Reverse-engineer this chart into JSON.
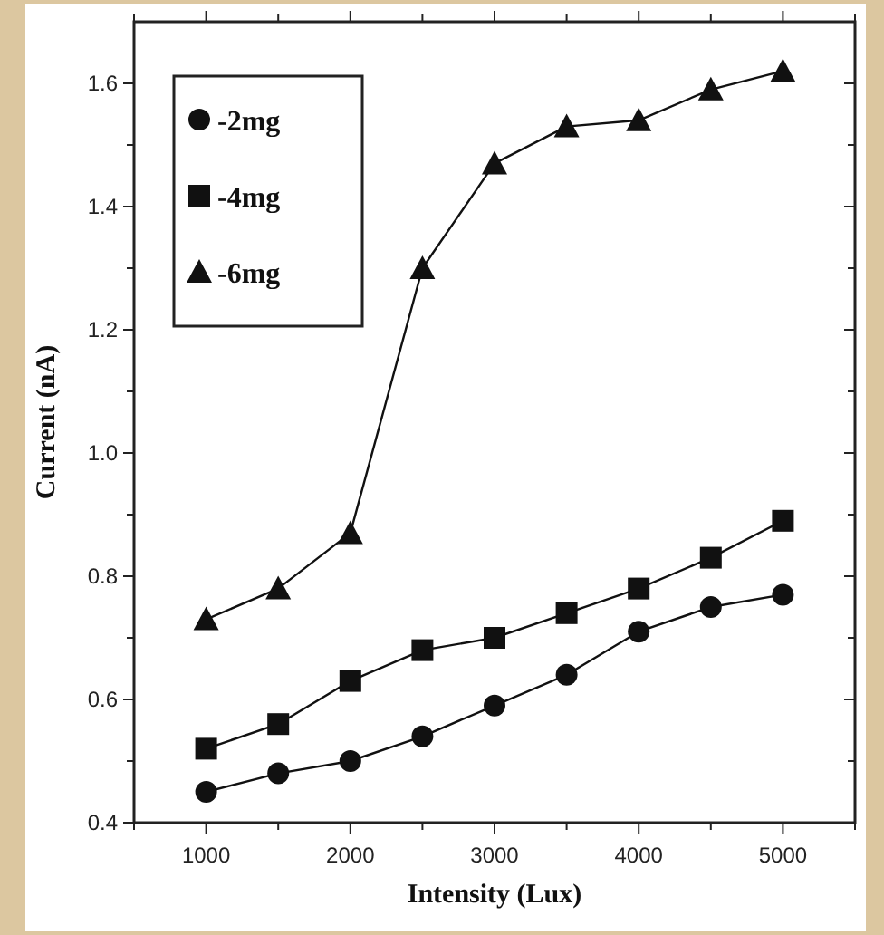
{
  "chart_data": {
    "type": "line",
    "xlabel": "Intensity (Lux)",
    "ylabel": "Current (nA)",
    "x": [
      1000,
      1500,
      2000,
      2500,
      3000,
      3500,
      4000,
      4500,
      5000
    ],
    "xlim": [
      500,
      5500
    ],
    "xticks": [
      {
        "value": 500,
        "label": null
      },
      1000,
      {
        "value": 1500,
        "label": null
      },
      2000,
      {
        "value": 2500,
        "label": null
      },
      3000,
      {
        "value": 3500,
        "label": null
      },
      4000,
      {
        "value": 4500,
        "label": null
      },
      5000,
      {
        "value": 5500,
        "label": null
      }
    ],
    "ylim": [
      0.4,
      1.7
    ],
    "yticks": [
      0.4,
      {
        "value": 0.5,
        "label": null
      },
      0.6,
      {
        "value": 0.7,
        "label": null
      },
      0.8,
      {
        "value": 0.9,
        "label": null
      },
      {
        "value": 1.0,
        "label": "1.0"
      },
      {
        "value": 1.1,
        "label": null
      },
      1.2,
      {
        "value": 1.3,
        "label": null
      },
      1.4,
      {
        "value": 1.5,
        "label": null
      },
      1.6
    ],
    "legend": "top left",
    "grid": false,
    "series": [
      {
        "name": "-2mg",
        "color": "#111111",
        "marker": "circle",
        "values": [
          0.45,
          0.48,
          0.5,
          0.54,
          0.59,
          0.64,
          0.71,
          0.75,
          0.77
        ]
      },
      {
        "name": "-4mg",
        "color": "#111111",
        "marker": "square",
        "values": [
          0.52,
          0.56,
          0.63,
          0.68,
          0.7,
          0.74,
          0.78,
          0.83,
          0.89
        ]
      },
      {
        "name": "-6mg",
        "color": "#111111",
        "marker": "triangle",
        "values": [
          0.73,
          0.78,
          0.87,
          1.3,
          1.47,
          1.53,
          1.54,
          1.59,
          1.62
        ]
      }
    ]
  }
}
